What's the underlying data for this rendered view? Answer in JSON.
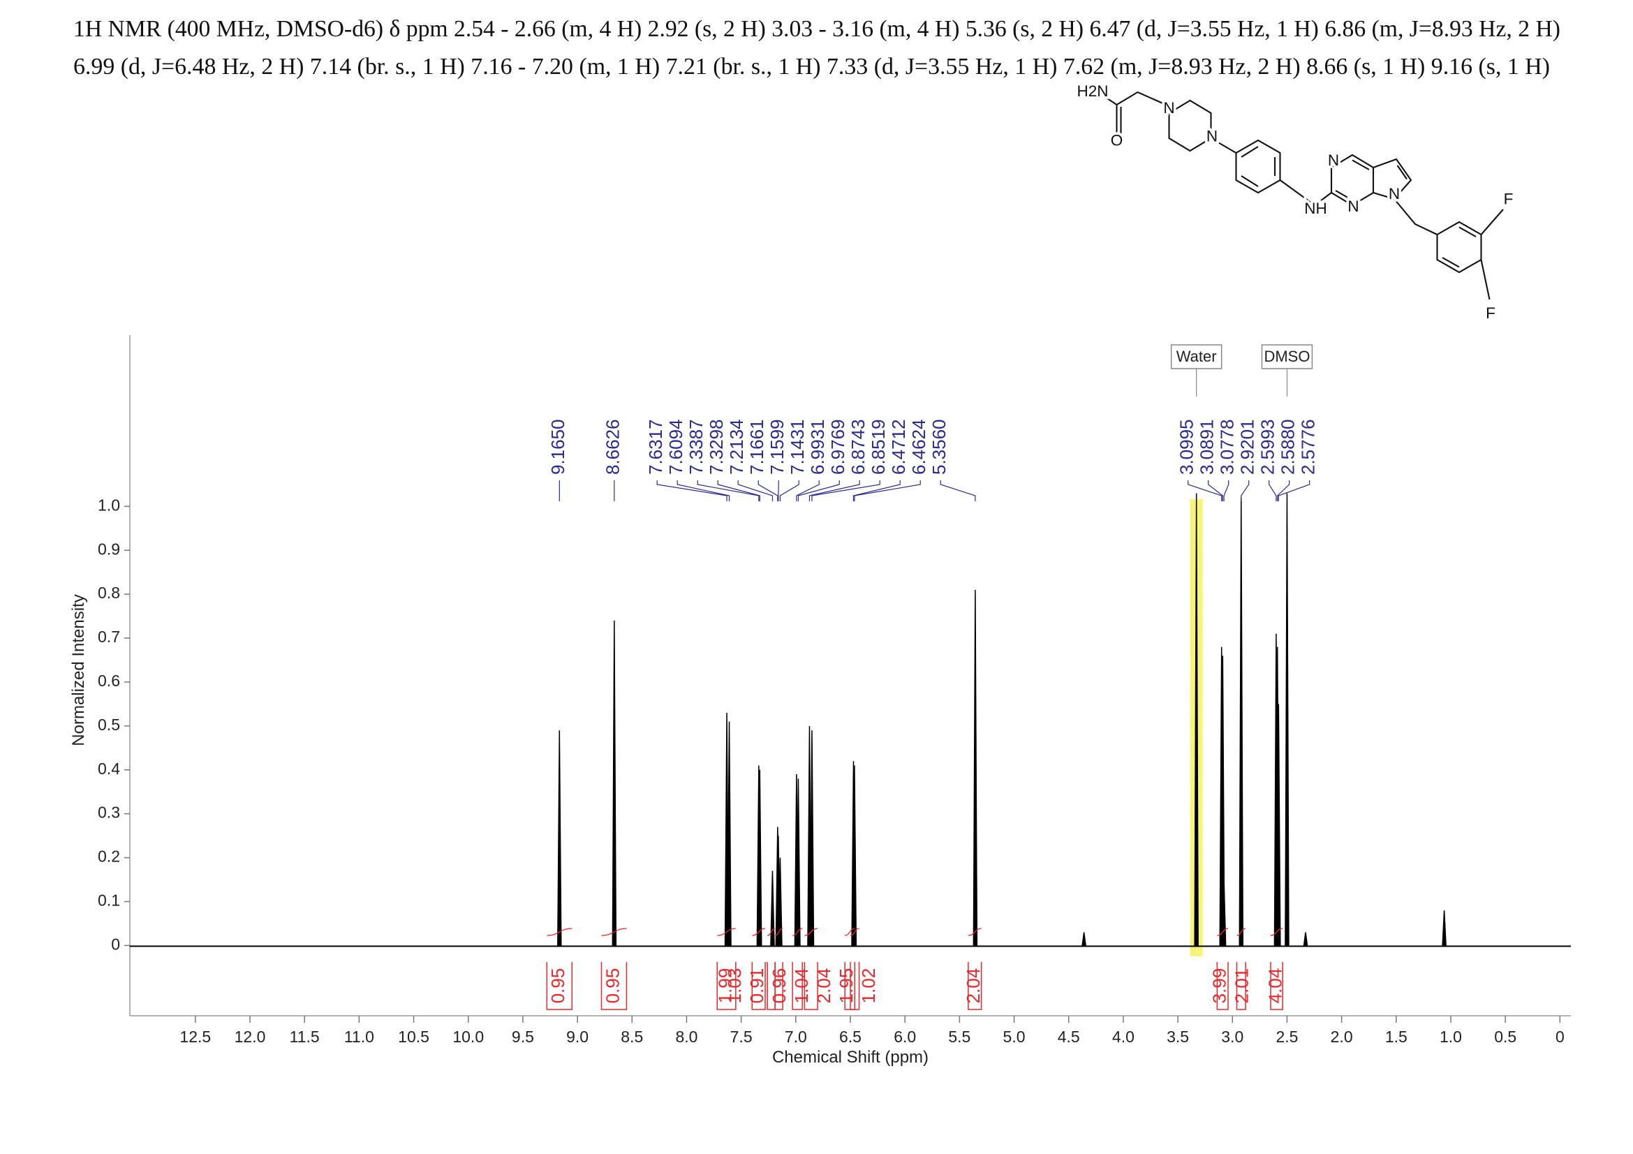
{
  "header": {
    "lines": [
      "1H NMR (400 MHz, DMSO-d6) δ ppm 2.54 - 2.66 (m, 4 H) 2.92 (s, 2 H) 3.03 - 3.16 (m, 4 H) 5.36 (s, 2 H) 6.47 (d,  J=3.55 Hz, 1 H) 6.86 (m, J=8.93 Hz, 2 H)",
      "6.99 (d, J=6.48 Hz, 2 H) 7.14 (br. s., 1 H) 7.16 - 7.20 (m, 1 H) 7.21 (br. s., 1 H) 7.33 (d,  J=3.55 Hz, 1 H) 7.62 (m, J=8.93 Hz, 2 H) 8.66 (s, 1 H) 9.16 (s, 1 H)"
    ]
  },
  "structure": {
    "labels": [
      "H2N",
      "O",
      "N",
      "N",
      "N",
      "N",
      "NH",
      "N",
      "F",
      "F"
    ]
  },
  "chart_data": {
    "type": "spectrum",
    "xlabel": "Chemical Shift (ppm)",
    "ylabel": "Normalized Intensity",
    "xlim": [
      13.1,
      -0.1
    ],
    "ylim": [
      -0.16,
      1.39
    ],
    "xticks": [
      12.5,
      {
        "value": 12,
        "label": "12.0"
      },
      11.5,
      {
        "value": 11,
        "label": "11.0"
      },
      10.5,
      {
        "value": 10,
        "label": "10.0"
      },
      9.5,
      {
        "value": 9,
        "label": "9.0"
      },
      8.5,
      {
        "value": 8,
        "label": "8.0"
      },
      7.5,
      {
        "value": 7,
        "label": "7.0"
      },
      6.5,
      {
        "value": 6,
        "label": "6.0"
      },
      5.5,
      {
        "value": 5,
        "label": "5.0"
      },
      4.5,
      {
        "value": 4,
        "label": "4.0"
      },
      3.5,
      {
        "value": 3,
        "label": "3.0"
      },
      2.5,
      {
        "value": 2,
        "label": "2.0"
      },
      1.5,
      {
        "value": 1,
        "label": "1.0"
      },
      0.5,
      0
    ],
    "yticks": [
      0,
      0.1,
      0.2,
      0.3,
      0.4,
      0.5,
      0.6,
      0.7,
      0.8,
      0.9,
      {
        "value": 1,
        "label": "1.0"
      }
    ],
    "color": "#000000",
    "peaks": {
      "x": [
        9.165,
        8.6626,
        7.6317,
        7.6094,
        7.3387,
        7.3298,
        7.2134,
        7.1661,
        7.1599,
        7.1431,
        6.9931,
        6.9769,
        6.8743,
        6.8519,
        6.4712,
        6.4624,
        5.356,
        4.36,
        3.33,
        3.0995,
        3.0891,
        3.0778,
        2.9201,
        2.5993,
        2.588,
        2.5776,
        2.5,
        2.33,
        1.06
      ],
      "values": [
        0.49,
        0.74,
        0.53,
        0.51,
        0.41,
        0.4,
        0.17,
        0.27,
        0.25,
        0.2,
        0.39,
        0.38,
        0.5,
        0.49,
        0.42,
        0.41,
        0.81,
        0.03,
        1.03,
        0.68,
        0.66,
        0.15,
        1.02,
        0.71,
        0.68,
        0.55,
        1.03,
        0.03,
        0.08
      ]
    },
    "peak_label_color": "#2b2b8c",
    "peak_labels": [
      {
        "value": 9.165,
        "label": "9.1650"
      },
      {
        "value": 8.6626,
        "label": "8.6626"
      },
      {
        "value": 7.6317,
        "label": "7.6317"
      },
      {
        "value": 7.6094,
        "label": "7.6094"
      },
      {
        "value": 7.3387,
        "label": "7.3387"
      },
      {
        "value": 7.3298,
        "label": "7.3298"
      },
      {
        "value": 7.2134,
        "label": "7.2134"
      },
      {
        "value": 7.1661,
        "label": "7.1661"
      },
      {
        "value": 7.1599,
        "label": "7.1599"
      },
      {
        "value": 7.1431,
        "label": "7.1431"
      },
      {
        "value": 6.9931,
        "label": "6.9931"
      },
      {
        "value": 6.9769,
        "label": "6.9769"
      },
      {
        "value": 6.8743,
        "label": "6.8743"
      },
      {
        "value": 6.8519,
        "label": "6.8519"
      },
      {
        "value": 6.4712,
        "label": "6.4712"
      },
      {
        "value": 6.4624,
        "label": "6.4624"
      },
      {
        "value": 5.356,
        "label": "5.3560"
      },
      {
        "value": 3.0995,
        "label": "3.0995"
      },
      {
        "value": 3.0891,
        "label": "3.0891"
      },
      {
        "value": 3.0778,
        "label": "3.0778"
      },
      {
        "value": 2.9201,
        "label": "2.9201"
      },
      {
        "value": 2.5993,
        "label": "2.5993"
      },
      {
        "value": 2.588,
        "label": "2.5880"
      },
      {
        "value": 2.5776,
        "label": "2.5776"
      }
    ],
    "integral_color": "#e8282b",
    "integrals": {
      "values": [
        0.95,
        0.95,
        1.99,
        1.03,
        0.91,
        0.96,
        1.04,
        2.04,
        1.95,
        1.02,
        2.04,
        3.99,
        2.01,
        4.04
      ],
      "from": [
        9.28,
        8.78,
        7.72,
        7.4,
        7.26,
        7.19,
        7.03,
        6.92,
        6.55,
        6.5,
        5.42,
        3.14,
        2.96,
        2.65
      ],
      "to": [
        9.05,
        8.55,
        7.55,
        7.28,
        7.19,
        7.12,
        6.94,
        6.8,
        6.46,
        6.42,
        5.3,
        3.04,
        2.88,
        2.54
      ]
    },
    "annotations": [
      {
        "text": "Water",
        "x": 3.33,
        "highlight_color": "#f5f57a"
      },
      {
        "text": "DMSO",
        "x": 2.5
      }
    ]
  }
}
